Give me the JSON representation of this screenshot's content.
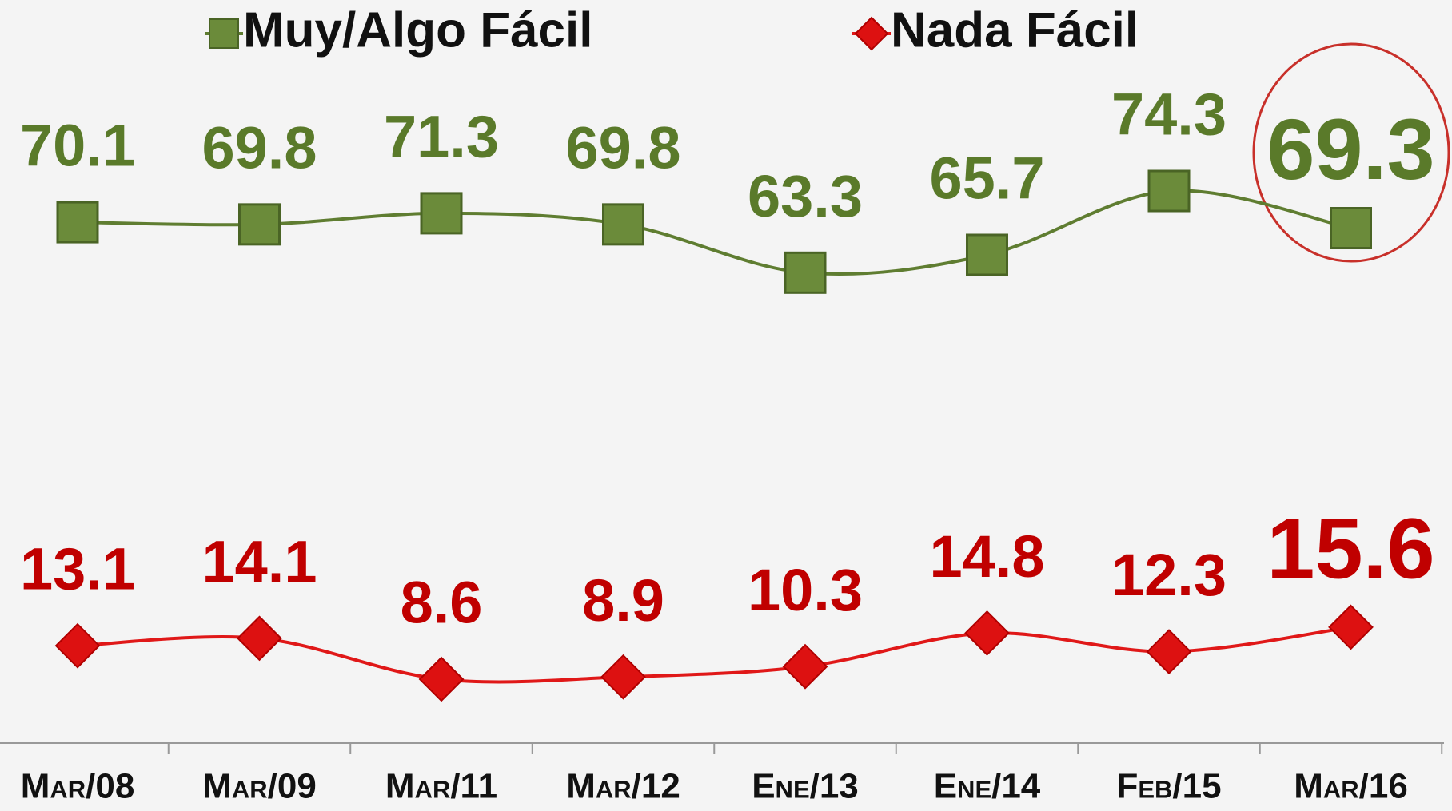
{
  "chart_data": {
    "type": "line",
    "categories": [
      "Mar/08",
      "Mar/09",
      "Mar/11",
      "Mar/12",
      "Ene/13",
      "Ene/14",
      "Feb/15",
      "Mar/16"
    ],
    "series": [
      {
        "name": "Muy/Algo Fácil",
        "color": "#5f7d31",
        "values": [
          70.1,
          69.8,
          71.3,
          69.8,
          63.3,
          65.7,
          74.3,
          69.3
        ]
      },
      {
        "name": "Nada Fácil",
        "color": "#e01818",
        "values": [
          13.1,
          14.1,
          8.6,
          8.9,
          10.3,
          14.8,
          12.3,
          15.6
        ]
      }
    ],
    "ylim": [
      0,
      100
    ],
    "grid": false,
    "legend": "top"
  }
}
